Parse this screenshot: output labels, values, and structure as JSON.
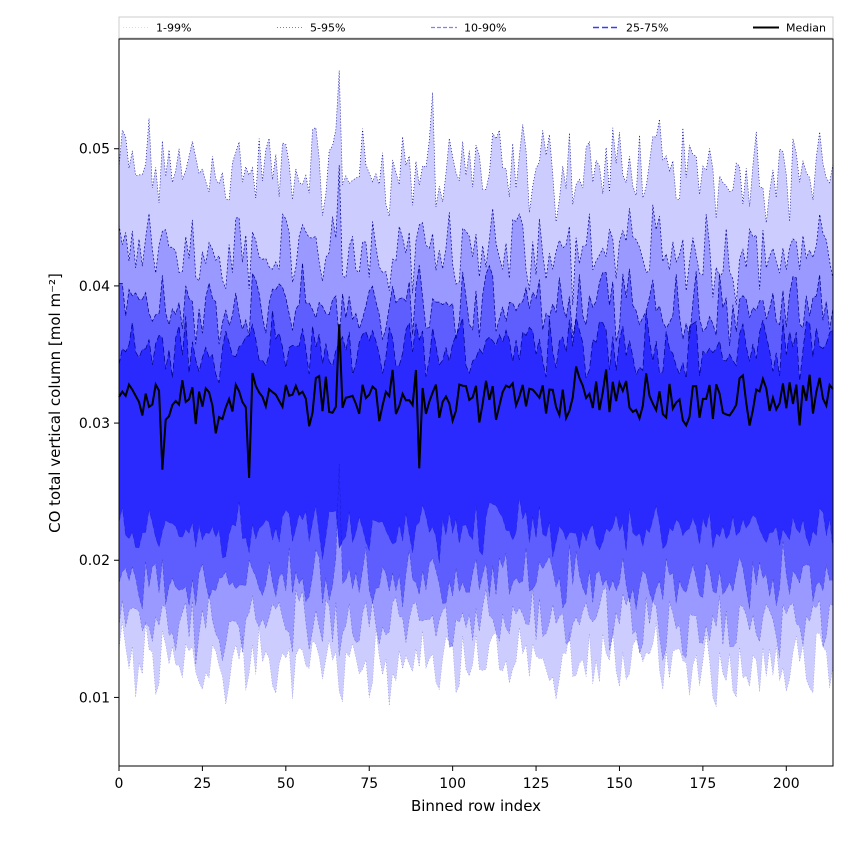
{
  "chart_data": {
    "type": "area",
    "xlabel": "Binned row index",
    "ylabel": "CO total vertical column [mol m⁻²]",
    "xlim": [
      0,
      214
    ],
    "ylim": [
      0.005,
      0.058
    ],
    "xticks": [
      0,
      25,
      50,
      75,
      100,
      125,
      150,
      175,
      200
    ],
    "yticks": [
      0.01,
      0.02,
      0.03,
      0.04,
      0.05
    ],
    "ytick_labels": [
      "0.01",
      "0.02",
      "0.03",
      "0.04",
      "0.05"
    ],
    "legend": {
      "placement": "top",
      "columns": 5
    },
    "colors": {
      "band_1_99": "#ccccff",
      "band_5_95": "#9999ff",
      "band_10_90": "#5e5eff",
      "band_25_75": "#2a2aff",
      "median": "#000000",
      "edge": "#00008b"
    },
    "series": [
      {
        "name": "1-99%",
        "type": "band",
        "lower_mean": 0.0125,
        "upper_mean": 0.0485
      },
      {
        "name": "5-95%",
        "type": "band",
        "lower_mean": 0.0155,
        "upper_mean": 0.0425
      },
      {
        "name": "10-90%",
        "type": "band",
        "lower_mean": 0.0185,
        "upper_mean": 0.0385
      },
      {
        "name": "25-75%",
        "type": "band",
        "lower_mean": 0.0222,
        "upper_mean": 0.0355
      },
      {
        "name": "Median",
        "type": "line",
        "mean": 0.0318
      }
    ],
    "x_range": [
      0,
      214
    ],
    "num_points": 215,
    "note_features": [
      {
        "x": 66,
        "upper_1_99": 0.0557,
        "upper_5_95": 0.0488,
        "lower_10_90": 0.027,
        "median": 0.0372
      },
      {
        "x": 39,
        "median": 0.026
      },
      {
        "x": 13,
        "median": 0.0266
      },
      {
        "x": 90,
        "median": 0.0267
      },
      {
        "x": 94,
        "upper_1_99": 0.0541
      }
    ]
  }
}
